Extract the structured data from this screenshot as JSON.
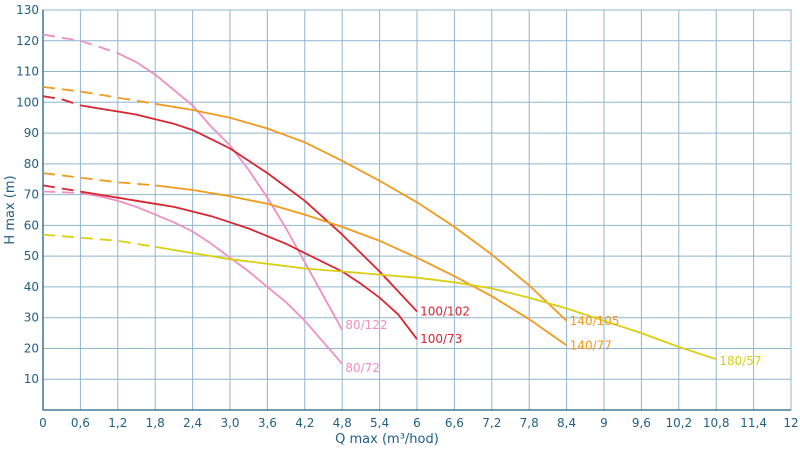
{
  "chart_data": {
    "type": "line",
    "title": "",
    "xlabel": "Q max (m³/hod)",
    "ylabel": "H max (m)",
    "xlim": [
      0,
      12
    ],
    "ylim": [
      0,
      130
    ],
    "x_ticks": [
      "0",
      "0,6",
      "1,2",
      "1,8",
      "2,4",
      "3,0",
      "3,6",
      "4,2",
      "4,8",
      "5,4",
      "6",
      "6,6",
      "7,2",
      "7,8",
      "8,4",
      "9",
      "9,6",
      "10,2",
      "10,8",
      "11,4",
      "12"
    ],
    "y_ticks": [
      "10",
      "20",
      "30",
      "40",
      "50",
      "60",
      "70",
      "80",
      "90",
      "100",
      "110",
      "120",
      "130"
    ],
    "y_tick_values": [
      10,
      20,
      30,
      40,
      50,
      60,
      70,
      80,
      90,
      100,
      110,
      120,
      130
    ],
    "grid": true,
    "legend": "inline labels at curve ends",
    "series": [
      {
        "name": "80/122",
        "color": "#ef8fc3",
        "dashed_points": [
          [
            0,
            122
          ],
          [
            0.3,
            121
          ],
          [
            0.6,
            120
          ],
          [
            0.9,
            118
          ],
          [
            1.2,
            116
          ]
        ],
        "points": [
          [
            1.2,
            116
          ],
          [
            1.5,
            113
          ],
          [
            1.8,
            109
          ],
          [
            2.1,
            104
          ],
          [
            2.4,
            99
          ],
          [
            2.7,
            92
          ],
          [
            3.0,
            86
          ],
          [
            3.3,
            78
          ],
          [
            3.6,
            69
          ],
          [
            3.9,
            59
          ],
          [
            4.2,
            48
          ],
          [
            4.5,
            37
          ],
          [
            4.8,
            26
          ]
        ]
      },
      {
        "name": "80/72",
        "color": "#ef8fc3",
        "dashed_points": [
          [
            0,
            71
          ],
          [
            0.3,
            70.8
          ],
          [
            0.6,
            70.5
          ]
        ],
        "points": [
          [
            0.6,
            70.5
          ],
          [
            0.9,
            69.5
          ],
          [
            1.2,
            68
          ],
          [
            1.5,
            66
          ],
          [
            1.8,
            63.5
          ],
          [
            2.1,
            61
          ],
          [
            2.4,
            58
          ],
          [
            2.7,
            54
          ],
          [
            3.0,
            49.5
          ],
          [
            3.3,
            45
          ],
          [
            3.6,
            40
          ],
          [
            3.9,
            35
          ],
          [
            4.2,
            29
          ],
          [
            4.5,
            22
          ],
          [
            4.8,
            15
          ]
        ]
      },
      {
        "name": "100/102",
        "color": "#d9252f",
        "dashed_points": [
          [
            0,
            102
          ],
          [
            0.3,
            101
          ],
          [
            0.6,
            99
          ]
        ],
        "points": [
          [
            0.6,
            99
          ],
          [
            0.9,
            98
          ],
          [
            1.2,
            97
          ],
          [
            1.5,
            96
          ],
          [
            1.8,
            94.5
          ],
          [
            2.1,
            93
          ],
          [
            2.4,
            91
          ],
          [
            2.7,
            88
          ],
          [
            3.0,
            85
          ],
          [
            3.3,
            81
          ],
          [
            3.6,
            77
          ],
          [
            3.9,
            72.5
          ],
          [
            4.2,
            68
          ],
          [
            4.5,
            62.5
          ],
          [
            4.8,
            57
          ],
          [
            5.1,
            51
          ],
          [
            5.4,
            45
          ],
          [
            5.7,
            38.5
          ],
          [
            6.0,
            32
          ]
        ]
      },
      {
        "name": "100/73",
        "color": "#d9252f",
        "dashed_points": [
          [
            0,
            73
          ],
          [
            0.3,
            72
          ],
          [
            0.6,
            71
          ]
        ],
        "points": [
          [
            0.6,
            71
          ],
          [
            0.9,
            70
          ],
          [
            1.2,
            69
          ],
          [
            1.5,
            68
          ],
          [
            1.8,
            67
          ],
          [
            2.1,
            66
          ],
          [
            2.4,
            64.5
          ],
          [
            2.7,
            63
          ],
          [
            3.0,
            61
          ],
          [
            3.3,
            59
          ],
          [
            3.6,
            56.5
          ],
          [
            3.9,
            54
          ],
          [
            4.2,
            51
          ],
          [
            4.5,
            48
          ],
          [
            4.8,
            45
          ],
          [
            5.1,
            41
          ],
          [
            5.4,
            36.5
          ],
          [
            5.7,
            31
          ],
          [
            6.0,
            23
          ]
        ]
      },
      {
        "name": "140/105",
        "color": "#f09a1e",
        "dashed_points": [
          [
            0,
            105
          ],
          [
            0.6,
            103.5
          ],
          [
            1.2,
            101.5
          ],
          [
            1.8,
            99.5
          ]
        ],
        "points": [
          [
            1.8,
            99.5
          ],
          [
            2.4,
            97.5
          ],
          [
            3.0,
            95
          ],
          [
            3.6,
            91.5
          ],
          [
            4.2,
            87
          ],
          [
            4.8,
            81
          ],
          [
            5.4,
            74.5
          ],
          [
            6.0,
            67.5
          ],
          [
            6.6,
            59.5
          ],
          [
            7.2,
            50.5
          ],
          [
            7.8,
            40.5
          ],
          [
            8.4,
            29
          ]
        ]
      },
      {
        "name": "140/77",
        "color": "#f09a1e",
        "dashed_points": [
          [
            0,
            77
          ],
          [
            0.6,
            75.5
          ],
          [
            1.2,
            74
          ],
          [
            1.8,
            73
          ]
        ],
        "points": [
          [
            1.8,
            73
          ],
          [
            2.4,
            71.5
          ],
          [
            3.0,
            69.5
          ],
          [
            3.6,
            67
          ],
          [
            4.2,
            63.5
          ],
          [
            4.8,
            59.5
          ],
          [
            5.4,
            55
          ],
          [
            6.0,
            49.5
          ],
          [
            6.6,
            43.5
          ],
          [
            7.2,
            37
          ],
          [
            7.8,
            29.5
          ],
          [
            8.4,
            21
          ]
        ]
      },
      {
        "name": "180/57",
        "color": "#d9cf12",
        "dashed_points": [
          [
            0,
            57
          ],
          [
            0.6,
            56
          ],
          [
            1.2,
            55
          ],
          [
            1.8,
            53
          ]
        ],
        "points": [
          [
            1.8,
            53
          ],
          [
            2.4,
            51
          ],
          [
            3.0,
            49
          ],
          [
            3.6,
            47.5
          ],
          [
            4.2,
            46
          ],
          [
            4.8,
            45
          ],
          [
            5.4,
            44
          ],
          [
            6.0,
            43
          ],
          [
            6.6,
            41.5
          ],
          [
            7.2,
            39.5
          ],
          [
            7.8,
            36.5
          ],
          [
            8.4,
            33
          ],
          [
            9.0,
            29
          ],
          [
            9.6,
            25
          ],
          [
            10.2,
            20.5
          ],
          [
            10.8,
            16.5
          ]
        ]
      }
    ]
  }
}
